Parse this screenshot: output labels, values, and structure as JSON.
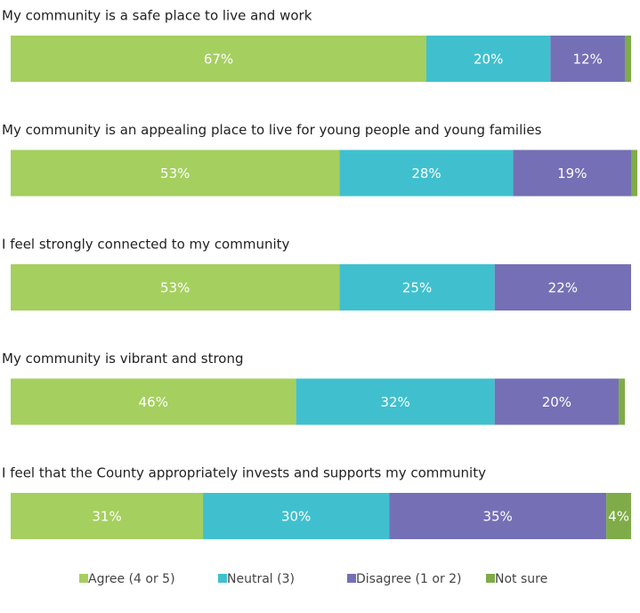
{
  "chart_data": {
    "type": "stacked-bar-horizontal",
    "categories": [
      "My community is a safe place to live and work",
      "My community is an appealing place to live for young people and young families",
      "I feel strongly connected to my community",
      "My community is vibrant and strong",
      "I feel that the County appropriately invests and supports my community"
    ],
    "xlim": [
      0,
      100
    ],
    "series": [
      {
        "name": "Agree (4 or 5)",
        "color": "#a5cf5f",
        "values": [
          67,
          53,
          53,
          46,
          31
        ],
        "value_labels": [
          "67%",
          "53%",
          "53%",
          "46%",
          "31%"
        ]
      },
      {
        "name": "Neutral (3)",
        "color": "#40c0ce",
        "values": [
          20,
          28,
          25,
          32,
          30
        ],
        "value_labels": [
          "20%",
          "28%",
          "25%",
          "32%",
          "30%"
        ]
      },
      {
        "name": "Disagree (1 or 2)",
        "color": "#7570b5",
        "values": [
          12,
          19,
          22,
          20,
          35
        ],
        "value_labels": [
          "12%",
          "19%",
          "22%",
          "20%",
          "35%"
        ]
      },
      {
        "name": "Not sure",
        "color": "#7fab48",
        "values": [
          1,
          1,
          0,
          1,
          4
        ],
        "value_labels": [
          null,
          null,
          null,
          null,
          "4%"
        ]
      }
    ]
  }
}
